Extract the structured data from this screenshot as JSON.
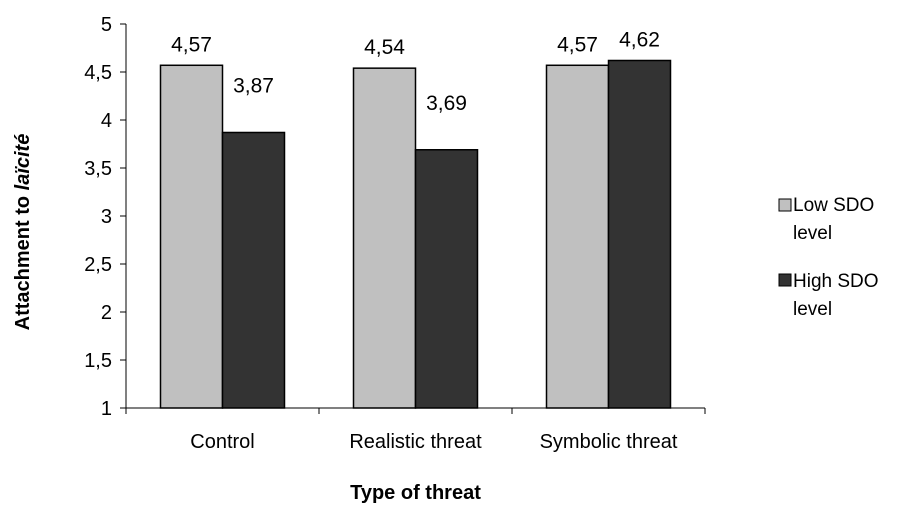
{
  "chart_data": {
    "type": "bar",
    "categories": [
      "Control",
      "Realistic threat",
      "Symbolic threat"
    ],
    "series": [
      {
        "name": "Low SDO level",
        "values": [
          4.57,
          4.54,
          4.57
        ],
        "labels": [
          "4,57",
          "4,54",
          "4,57"
        ],
        "color": "#c0c0c0"
      },
      {
        "name": "High SDO level",
        "values": [
          3.87,
          3.69,
          4.62
        ],
        "labels": [
          "3,87",
          "3,69",
          "4,62"
        ],
        "color": "#333333"
      }
    ],
    "xlabel": "Type of threat",
    "ylabel_prefix": "Attachment to ",
    "ylabel_italic": "laïcité",
    "ylim": [
      1,
      5
    ],
    "yticks": [
      1,
      1.5,
      2,
      2.5,
      3,
      3.5,
      4,
      4.5,
      5
    ],
    "ytick_labels": [
      "1",
      "1,5",
      "2",
      "2,5",
      "3",
      "3,5",
      "4",
      "4,5",
      "5"
    ],
    "grid": false,
    "legend": {
      "placement": "right",
      "entries": [
        {
          "line1": "Low SDO level",
          "line1_text": "Low SDO",
          "line2_text": "level"
        },
        {
          "line1": "High SDO level",
          "line1_text": "High SDO",
          "line2_text": "level"
        }
      ]
    }
  }
}
